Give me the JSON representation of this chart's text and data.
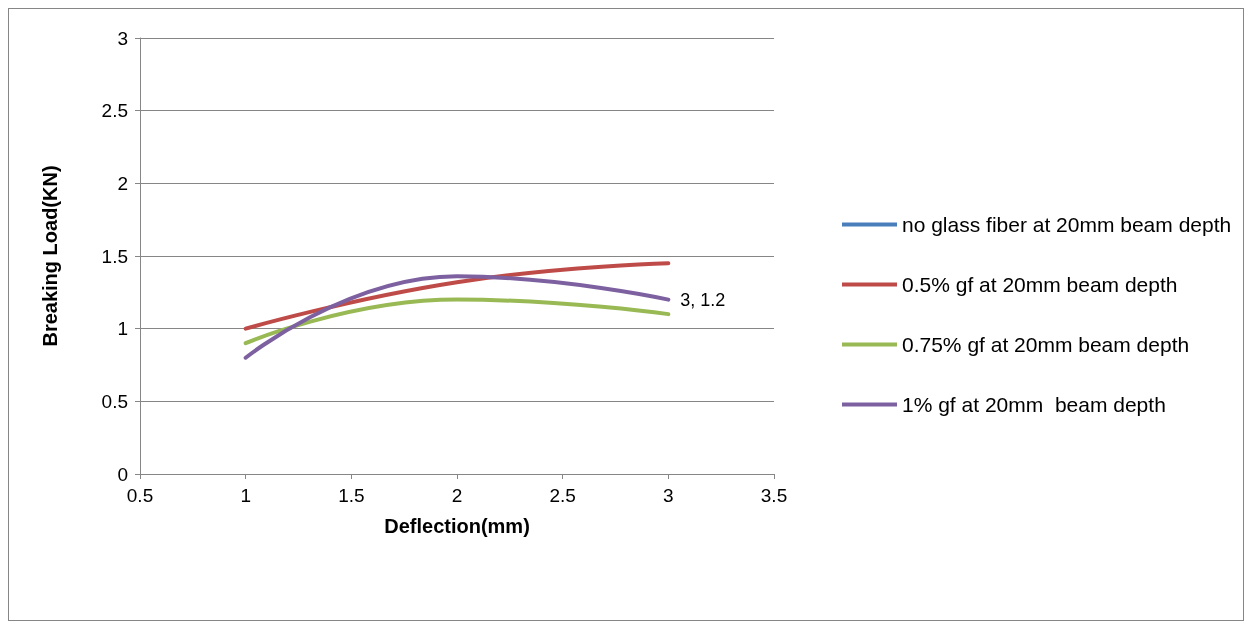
{
  "chart_data": {
    "type": "line",
    "xlabel": "Deflection(mm)",
    "ylabel": "Breaking Load(KN)",
    "x": [
      1,
      2,
      3
    ],
    "xlim": [
      0.5,
      3.5
    ],
    "xticks": [
      0.5,
      1,
      1.5,
      2,
      2.5,
      3,
      3.5
    ],
    "ylim": [
      0,
      3
    ],
    "yticks": [
      0,
      0.5,
      1,
      1.5,
      2,
      2.5,
      3
    ],
    "grid": "y",
    "legend": "right",
    "marker": "none",
    "line_style": "solid",
    "series": [
      {
        "name": "no glass fiber at 20mm beam depth",
        "color": "#4a7ebb",
        "values": [
          null,
          null,
          null
        ]
      },
      {
        "name": "0.5% gf at 20mm beam depth",
        "color": "#be4b48",
        "values": [
          1,
          1.32,
          1.45
        ]
      },
      {
        "name": "0.75% gf at 20mm beam depth",
        "color": "#98b954",
        "values": [
          0.9,
          1.2,
          1.1
        ]
      },
      {
        "name": "1% gf at 20mm  beam depth",
        "color": "#7d60a0",
        "values": [
          0.8,
          1.36,
          1.2
        ],
        "value_labels": [
          null,
          null,
          "3, 1.2"
        ]
      }
    ]
  }
}
